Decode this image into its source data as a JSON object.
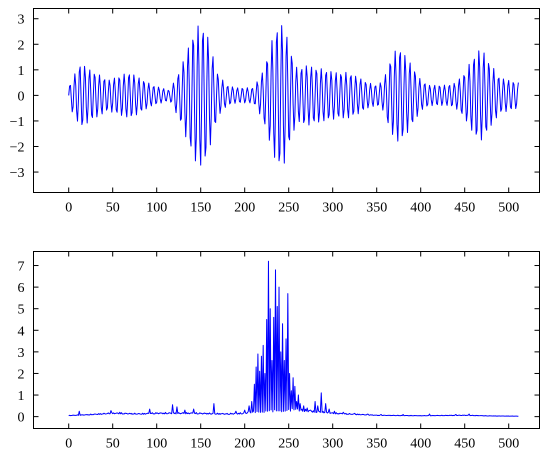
{
  "chart_data": [
    {
      "type": "line",
      "title": "",
      "xlabel": "",
      "ylabel": "",
      "xlim": [
        -40,
        535
      ],
      "ylim": [
        -3.8,
        3.4
      ],
      "xticks": [
        0,
        50,
        100,
        150,
        200,
        250,
        300,
        350,
        400,
        450,
        500
      ],
      "yticks": [
        -3,
        -2,
        -1,
        0,
        1,
        2,
        3
      ],
      "grid": false,
      "color": "#0000ff",
      "series": [
        {
          "name": "",
          "sample_step": 1,
          "x_start": 0,
          "x_end": 511,
          "envelope_x": [
            0,
            3,
            8,
            14,
            20,
            30,
            45,
            60,
            70,
            80,
            95,
            105,
            115,
            125,
            135,
            143,
            150,
            156,
            162,
            170,
            180,
            190,
            200,
            210,
            220,
            228,
            235,
            240,
            246,
            252,
            260,
            268,
            280,
            292,
            305,
            318,
            330,
            340,
            350,
            358,
            364,
            370,
            376,
            382,
            390,
            400,
            410,
            420,
            430,
            440,
            450,
            458,
            465,
            472,
            480,
            490,
            500,
            511
          ],
          "envelope_y": [
            0.3,
            0.6,
            0.9,
            1.3,
            1.1,
            0.9,
            0.6,
            0.8,
            0.9,
            0.7,
            0.4,
            0.3,
            0.2,
            0.9,
            1.8,
            2.6,
            2.8,
            2.6,
            1.8,
            0.8,
            0.4,
            0.3,
            0.3,
            0.3,
            0.9,
            1.8,
            2.6,
            2.9,
            2.6,
            1.8,
            1.0,
            1.2,
            1.1,
            1.0,
            0.9,
            0.9,
            0.7,
            0.5,
            0.4,
            0.6,
            1.3,
            1.7,
            1.9,
            1.6,
            1.2,
            0.6,
            0.4,
            0.4,
            0.4,
            0.5,
            0.9,
            1.4,
            1.8,
            1.7,
            1.2,
            0.7,
            0.6,
            0.5
          ],
          "oscillation_period": 5.6
        }
      ]
    },
    {
      "type": "line",
      "title": "",
      "xlabel": "",
      "ylabel": "",
      "xlim": [
        -40,
        535
      ],
      "ylim": [
        -0.55,
        7.65
      ],
      "xticks": [
        0,
        50,
        100,
        150,
        200,
        250,
        300,
        350,
        400,
        450,
        500
      ],
      "yticks": [
        0,
        1,
        2,
        3,
        4,
        5,
        6,
        7
      ],
      "grid": false,
      "color": "#0000ff",
      "series": [
        {
          "name": "",
          "sample_step": 1,
          "x_start": 0,
          "x_end": 511,
          "baseline_x": [
            0,
            20,
            50,
            80,
            100,
            140,
            180,
            200,
            205,
            260,
            300,
            350,
            400,
            450,
            480,
            511
          ],
          "baseline_y": [
            0.05,
            0.08,
            0.15,
            0.12,
            0.15,
            0.15,
            0.12,
            0.15,
            0.2,
            0.3,
            0.15,
            0.06,
            0.04,
            0.06,
            0.03,
            0.02
          ],
          "peaks": [
            [
              12,
              0.25
            ],
            [
              48,
              0.28
            ],
            [
              58,
              0.2
            ],
            [
              92,
              0.35
            ],
            [
              118,
              0.55
            ],
            [
              123,
              0.45
            ],
            [
              132,
              0.3
            ],
            [
              142,
              0.35
            ],
            [
              165,
              0.6
            ],
            [
              190,
              0.25
            ],
            [
              200,
              0.3
            ],
            [
              205,
              0.5
            ],
            [
              208,
              0.7
            ],
            [
              211,
              1.5
            ],
            [
              213,
              2.3
            ],
            [
              215,
              2.9
            ],
            [
              217,
              2.1
            ],
            [
              219,
              2.8
            ],
            [
              221,
              3.3
            ],
            [
              223,
              2.0
            ],
            [
              225,
              4.5
            ],
            [
              227,
              7.2
            ],
            [
              229,
              5.0
            ],
            [
              231,
              2.6
            ],
            [
              233,
              4.6
            ],
            [
              235,
              6.8
            ],
            [
              237,
              5.1
            ],
            [
              239,
              6.0
            ],
            [
              241,
              3.0
            ],
            [
              243,
              4.3
            ],
            [
              245,
              2.6
            ],
            [
              247,
              3.6
            ],
            [
              249,
              5.7
            ],
            [
              251,
              2.0
            ],
            [
              253,
              1.2
            ],
            [
              255,
              1.8
            ],
            [
              257,
              1.4
            ],
            [
              259,
              0.7
            ],
            [
              261,
              1.0
            ],
            [
              263,
              0.6
            ],
            [
              267,
              0.5
            ],
            [
              271,
              0.4
            ],
            [
              275,
              0.3
            ],
            [
              280,
              0.7
            ],
            [
              283,
              0.5
            ],
            [
              287,
              1.1
            ],
            [
              292,
              0.6
            ],
            [
              296,
              0.35
            ],
            [
              302,
              0.25
            ],
            [
              312,
              0.2
            ],
            [
              325,
              0.15
            ],
            [
              340,
              0.12
            ],
            [
              355,
              0.1
            ],
            [
              380,
              0.1
            ],
            [
              410,
              0.12
            ],
            [
              440,
              0.1
            ],
            [
              455,
              0.12
            ]
          ]
        }
      ]
    }
  ]
}
